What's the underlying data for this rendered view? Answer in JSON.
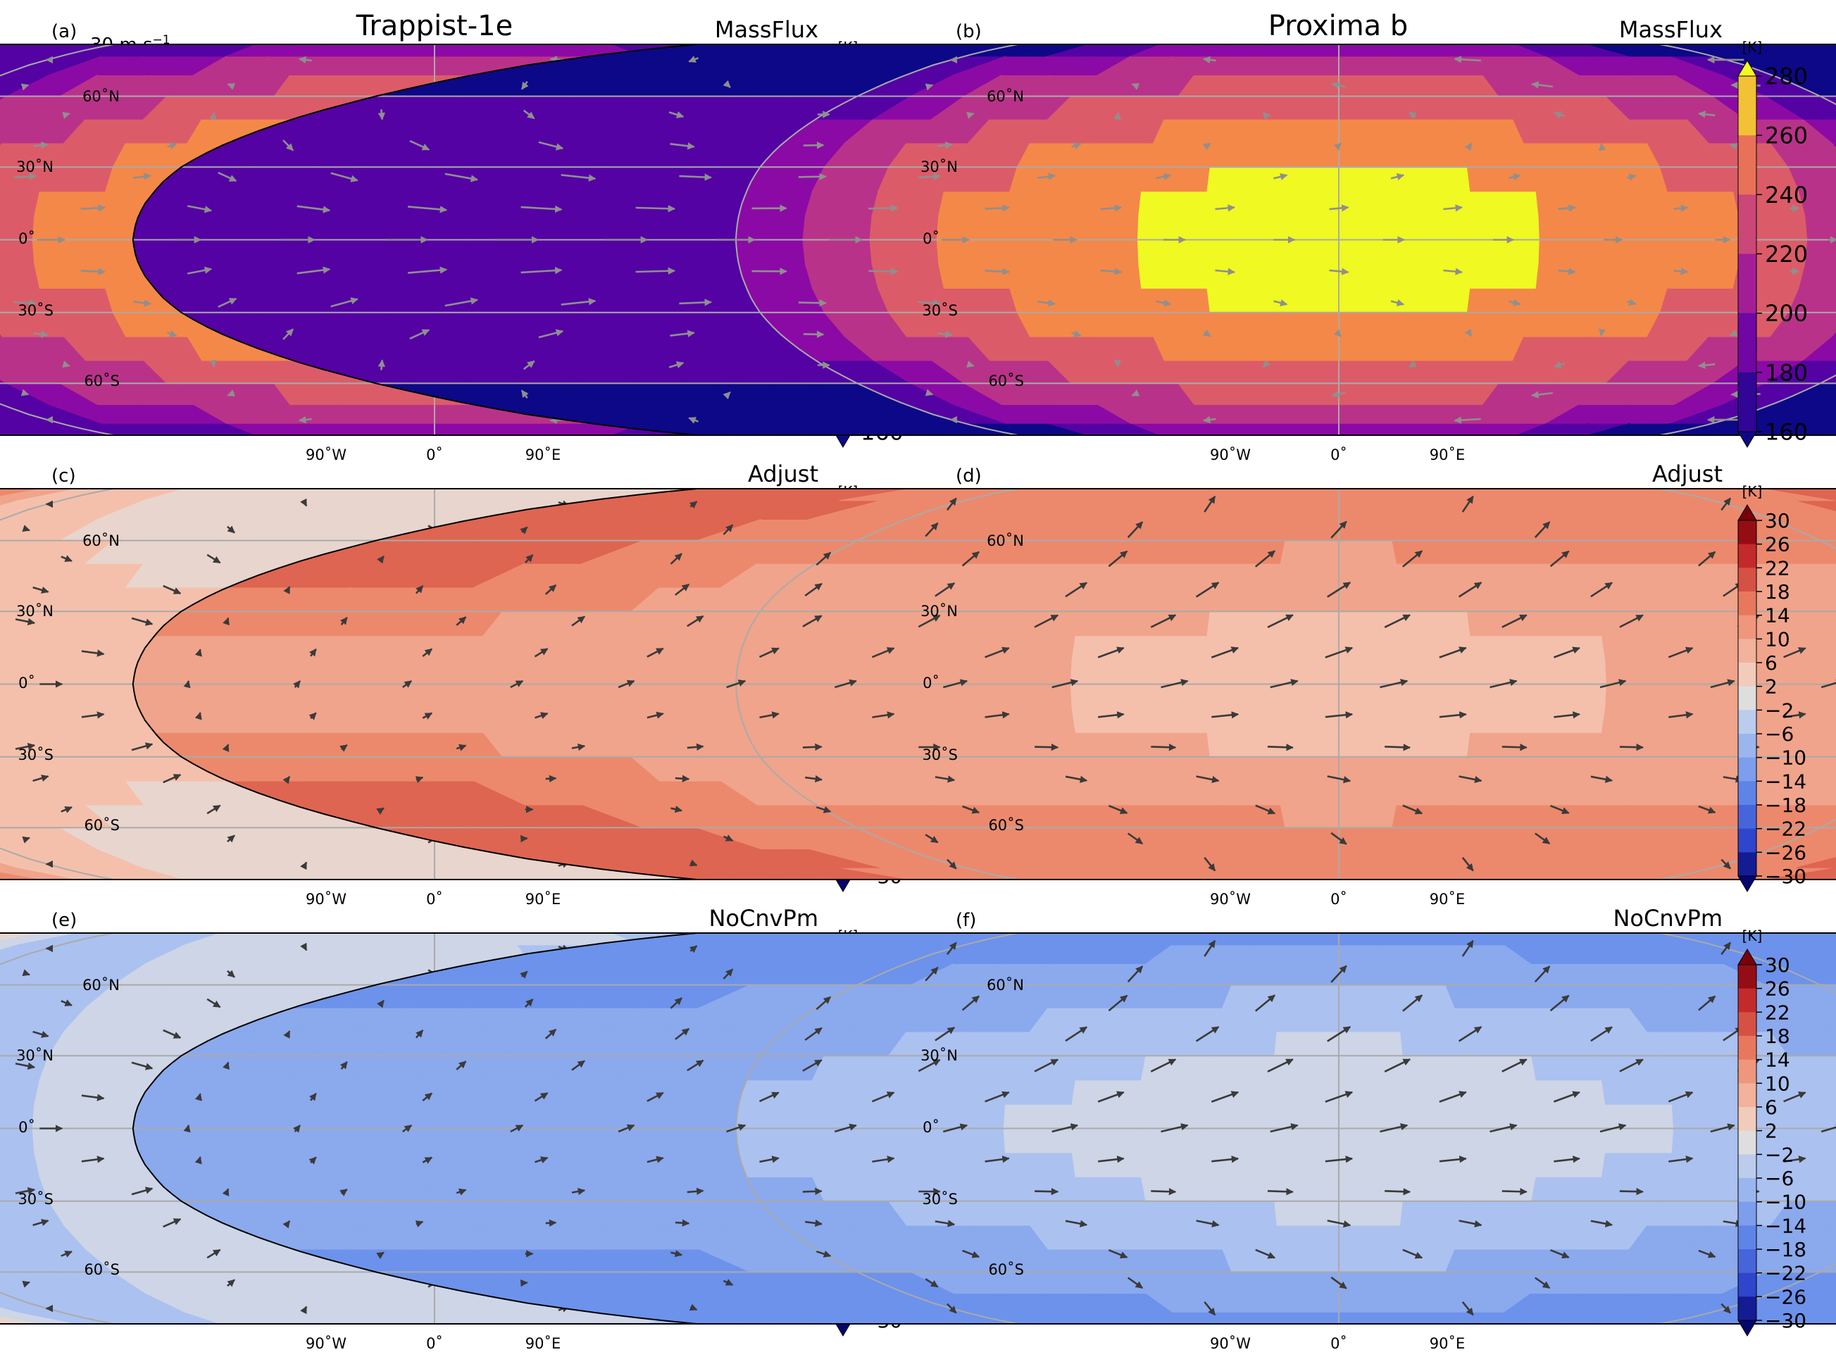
{
  "columns": [
    {
      "title": "Trappist-1e"
    },
    {
      "title": "Proxima b"
    }
  ],
  "scale_arrow": {
    "label": "30 m s",
    "exponent": "−1"
  },
  "lat_labels": [
    "60˚N",
    "30˚N",
    "0˚",
    "30˚S",
    "60˚S"
  ],
  "lon_labels": [
    "90˚W",
    "0˚",
    "90˚E"
  ],
  "panels": [
    {
      "letter": "(a)",
      "experiment": "MassFlux",
      "unit": "[K]",
      "colormap": "plasma",
      "ticks": [
        "280",
        "260",
        "240",
        "220",
        "200",
        "180",
        "160"
      ],
      "field_range": [
        160,
        280
      ],
      "arrow_color": "#9a9a9a",
      "hot_lon": 0,
      "hot_lat": 0
    },
    {
      "letter": "(b)",
      "experiment": "MassFlux",
      "unit": "[K]",
      "colormap": "plasma",
      "ticks": [
        "280",
        "260",
        "240",
        "220",
        "200",
        "180",
        "160"
      ],
      "field_range": [
        160,
        280
      ],
      "arrow_color": "#9a9a9a",
      "hot_lon": 0,
      "hot_lat": 0
    },
    {
      "letter": "(c)",
      "experiment": "Adjust",
      "unit": "[K]",
      "colormap": "coolwarm",
      "ticks": [
        "30",
        "26",
        "22",
        "18",
        "14",
        "10",
        "6",
        "2",
        "−2",
        "−6",
        "−10",
        "−14",
        "−18",
        "−22",
        "−26",
        "−30"
      ],
      "field_range": [
        -30,
        30
      ],
      "arrow_color": "#3a3a3a"
    },
    {
      "letter": "(d)",
      "experiment": "Adjust",
      "unit": "[K]",
      "colormap": "coolwarm",
      "ticks": [
        "30",
        "26",
        "22",
        "18",
        "14",
        "10",
        "6",
        "2",
        "−2",
        "−6",
        "−10",
        "−14",
        "−18",
        "−22",
        "−26",
        "−30"
      ],
      "field_range": [
        -30,
        30
      ],
      "arrow_color": "#3a3a3a"
    },
    {
      "letter": "(e)",
      "experiment": "NoCnvPm",
      "unit": "[K]",
      "colormap": "coolwarm",
      "ticks": [
        "30",
        "26",
        "22",
        "18",
        "14",
        "10",
        "6",
        "2",
        "−2",
        "−6",
        "−10",
        "−14",
        "−18",
        "−22",
        "−26",
        "−30"
      ],
      "field_range": [
        -30,
        30
      ],
      "arrow_color": "#3a3a3a"
    },
    {
      "letter": "(f)",
      "experiment": "NoCnvPm",
      "unit": "[K]",
      "colormap": "coolwarm",
      "ticks": [
        "30",
        "26",
        "22",
        "18",
        "14",
        "10",
        "6",
        "2",
        "−2",
        "−6",
        "−10",
        "−14",
        "−18",
        "−22",
        "−26",
        "−30"
      ],
      "field_range": [
        -30,
        30
      ],
      "arrow_color": "#3a3a3a"
    }
  ]
}
